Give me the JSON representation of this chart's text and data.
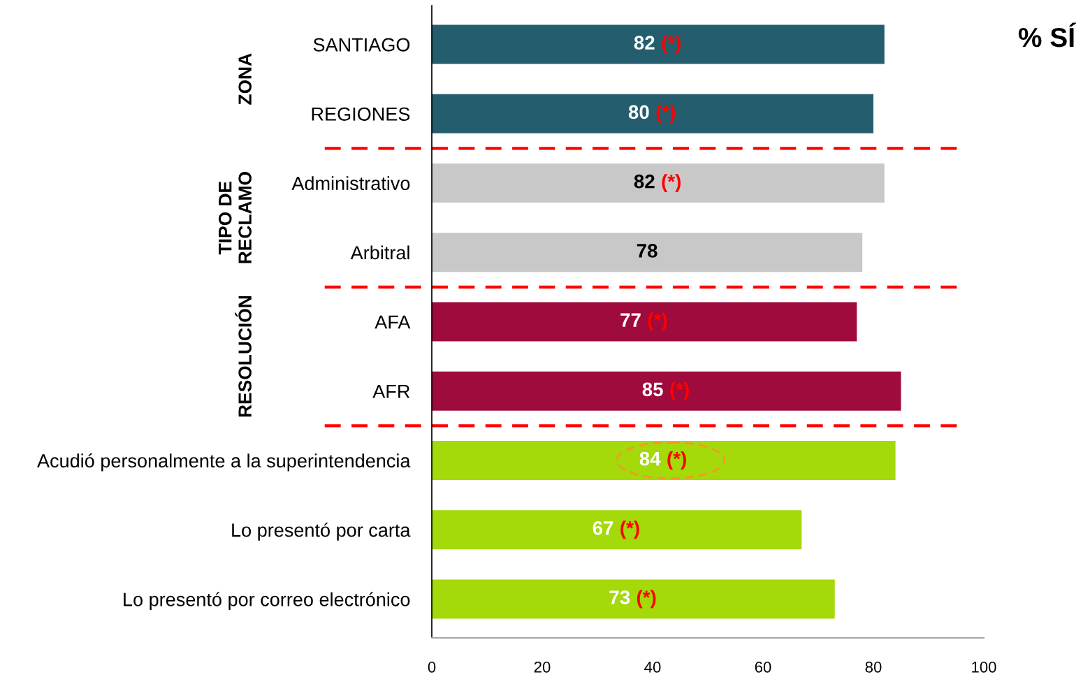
{
  "chart_data": {
    "type": "bar",
    "orientation": "horizontal",
    "title": "% SÍ",
    "categories": [
      "SANTIAGO",
      "REGIONES",
      "Administrativo",
      "Arbitral",
      "AFA",
      "AFR",
      "Acudió personalmente a la superintendencia",
      "Lo presentó por carta",
      "Lo presentó por correo electrónico"
    ],
    "values": [
      82,
      80,
      82,
      78,
      77,
      85,
      84,
      67,
      73
    ],
    "colors": [
      "#245e6e",
      "#245e6e",
      "#c8c8c8",
      "#c8c8c8",
      "#9e0b3c",
      "#9e0b3c",
      "#a4d90a",
      "#a4d90a",
      "#a4d90a"
    ],
    "value_labels": [
      "82 (*)",
      "80 (*)",
      "82 (*)",
      "78",
      "77 (*)",
      "85 (*)",
      "84 (*)",
      "67 (*)",
      "73 (*)"
    ],
    "xlim": [
      0,
      100
    ],
    "xticks": [
      0,
      20,
      40,
      60,
      80,
      100
    ],
    "annotations": [
      "ZONA",
      "TIPO DE\nRECLAMO",
      "RESOLUCIÓN"
    ]
  }
}
